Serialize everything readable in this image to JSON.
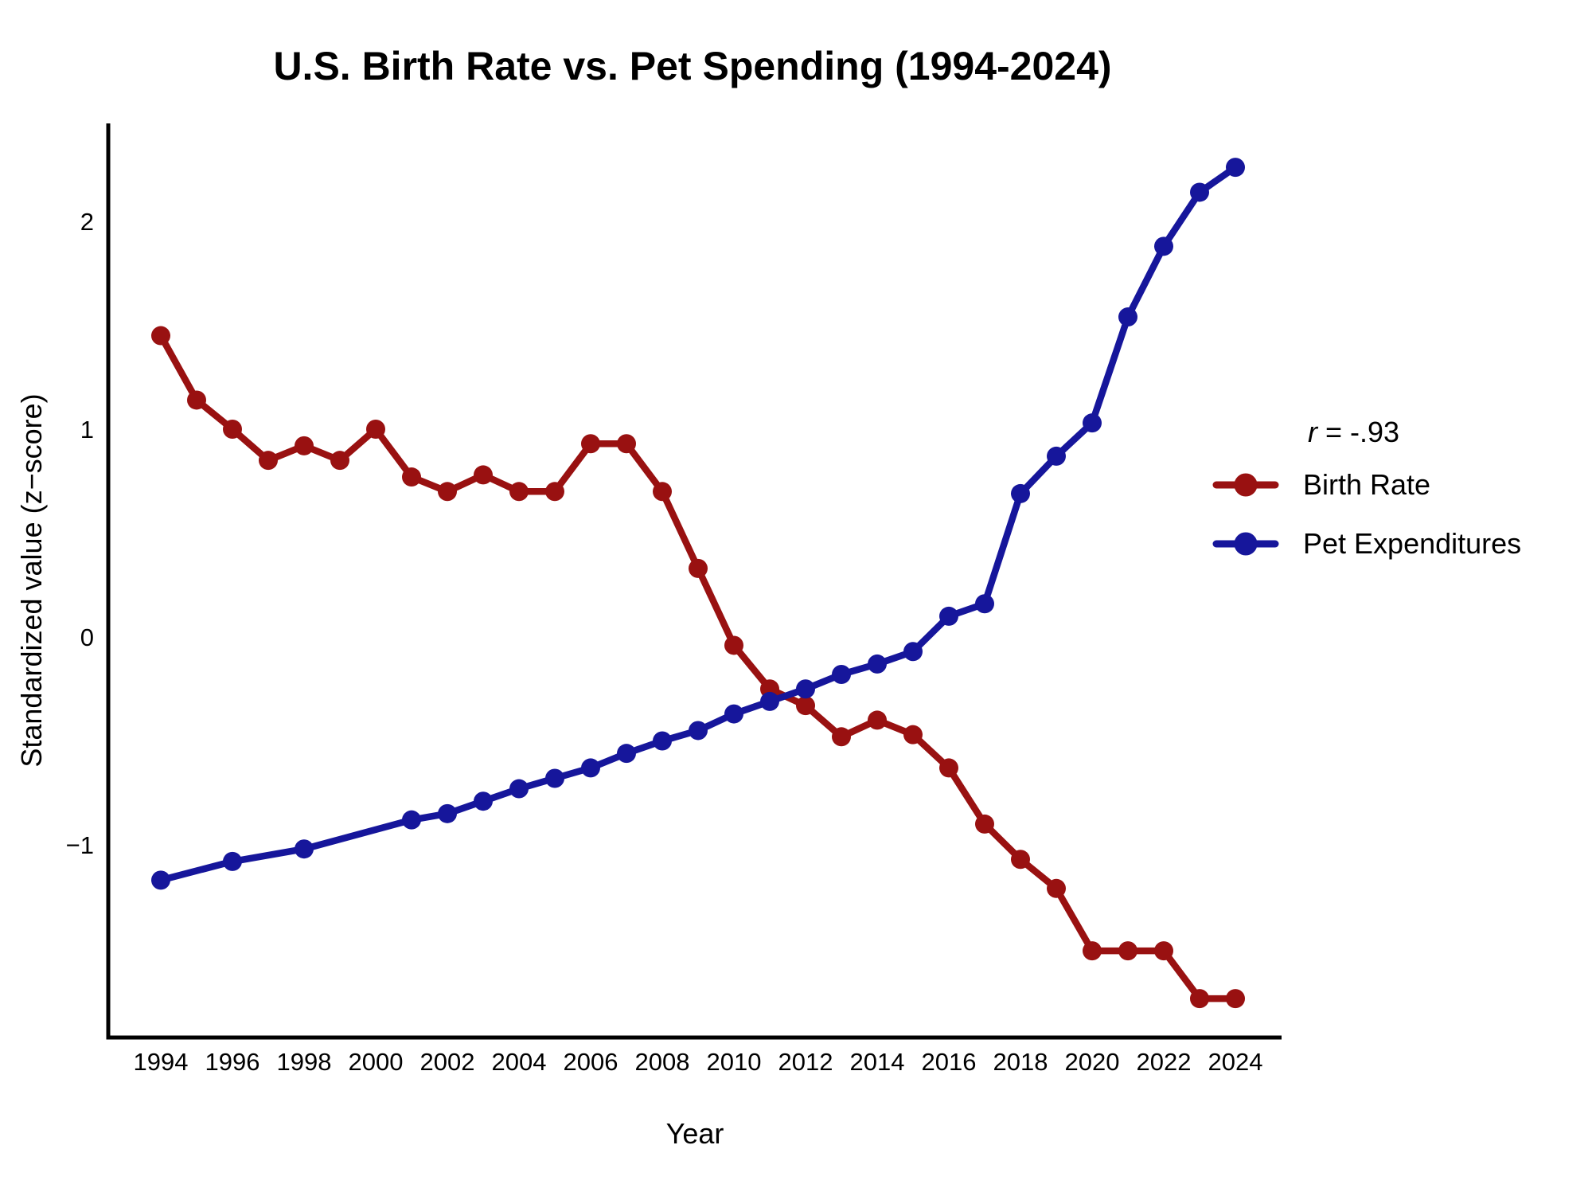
{
  "page": {
    "background": "#FFFFFF"
  },
  "chart_data": {
    "type": "line",
    "title": "U.S. Birth Rate vs. Pet Spending (1994-2024)",
    "xlabel": "Year",
    "ylabel": "Standardized value (z−score)",
    "x_ticks": [
      1994,
      1996,
      1998,
      2000,
      2002,
      2004,
      2006,
      2008,
      2010,
      2012,
      2014,
      2016,
      2018,
      2020,
      2022,
      2024
    ],
    "y_ticks": [
      2,
      1,
      0,
      -1
    ],
    "x_range": [
      1992.5,
      2025.3
    ],
    "y_range": [
      -1.93,
      2.47
    ],
    "grid": false,
    "legend_position": "right-center",
    "correlation_label": "r = -.93",
    "series": [
      {
        "name": "Birth Rate",
        "color": "#991111",
        "x": [
          1994,
          1995,
          1996,
          1997,
          1998,
          1999,
          2000,
          2001,
          2002,
          2003,
          2004,
          2005,
          2006,
          2007,
          2008,
          2009,
          2010,
          2011,
          2012,
          2013,
          2014,
          2015,
          2016,
          2017,
          2018,
          2019,
          2020,
          2021,
          2022,
          2023,
          2024
        ],
        "values": [
          1.45,
          1.14,
          1.0,
          0.85,
          0.92,
          0.85,
          1.0,
          0.77,
          0.7,
          0.78,
          0.7,
          0.7,
          0.93,
          0.93,
          0.7,
          0.33,
          -0.04,
          -0.25,
          -0.33,
          -0.48,
          -0.4,
          -0.47,
          -0.63,
          -0.9,
          -1.07,
          -1.21,
          -1.51,
          -1.51,
          -1.51,
          -1.74,
          -1.74
        ]
      },
      {
        "name": "Pet Expenditures",
        "color": "#16169B",
        "x": [
          1994,
          1996,
          1998,
          2001,
          2002,
          2003,
          2004,
          2005,
          2006,
          2007,
          2008,
          2009,
          2010,
          2011,
          2012,
          2013,
          2014,
          2015,
          2016,
          2017,
          2018,
          2019,
          2020,
          2021,
          2022,
          2023,
          2024
        ],
        "values": [
          -1.17,
          -1.08,
          -1.02,
          -0.88,
          -0.85,
          -0.79,
          -0.73,
          -0.68,
          -0.63,
          -0.56,
          -0.5,
          -0.45,
          -0.37,
          -0.31,
          -0.25,
          -0.18,
          -0.13,
          -0.07,
          0.1,
          0.16,
          0.69,
          0.87,
          1.03,
          1.54,
          1.88,
          2.14,
          2.26
        ]
      }
    ]
  },
  "legend": {
    "annotation_italic": "r",
    "annotation_rest": " = -.93",
    "items": [
      {
        "label": "Birth Rate",
        "color": "#991111"
      },
      {
        "label": "Pet Expenditures",
        "color": "#16169B"
      }
    ]
  }
}
